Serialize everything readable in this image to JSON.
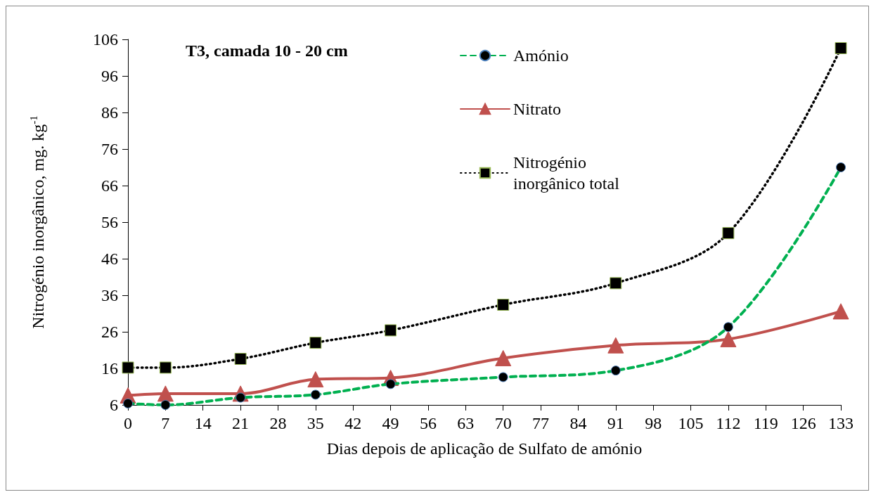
{
  "chart_data": {
    "type": "line",
    "title": "T3, camada 10 - 20 cm",
    "xlabel": "Dias depois de aplicação de Sulfato de amónio",
    "ylabel": "Nitrogénio inorgânico, mg. kg$^{-1}$",
    "x": [
      0,
      7,
      21,
      35,
      49,
      70,
      91,
      112,
      133
    ],
    "series": [
      {
        "name": "Amónio",
        "color": "#00b050",
        "marker": "circle",
        "line_style": "dashed",
        "values": [
          6.4,
          6,
          8,
          8.8,
          11.7,
          13.6,
          15.4,
          27.3,
          71
        ]
      },
      {
        "name": "Nitrato",
        "color": "#c0504d",
        "marker": "triangle",
        "line_style": "solid",
        "values": [
          8.6,
          9.1,
          9.1,
          13,
          13.4,
          18.8,
          22.3,
          24,
          31.6
        ]
      },
      {
        "name": "Nitrogénio inorgânico total",
        "color": "#000000",
        "marker": "square",
        "line_style": "dotted",
        "values": [
          16.2,
          16.2,
          18.6,
          23,
          26.4,
          33.4,
          39.3,
          53,
          103.6
        ]
      }
    ],
    "xlim": [
      0,
      133
    ],
    "xticks": [
      0,
      7,
      14,
      21,
      28,
      35,
      42,
      49,
      56,
      63,
      70,
      77,
      84,
      91,
      98,
      105,
      112,
      119,
      126,
      133
    ],
    "ylim": [
      6,
      106
    ],
    "yticks": [
      6,
      16,
      26,
      36,
      46,
      56,
      66,
      76,
      86,
      96,
      106
    ],
    "grid": false,
    "legend": "top right"
  }
}
